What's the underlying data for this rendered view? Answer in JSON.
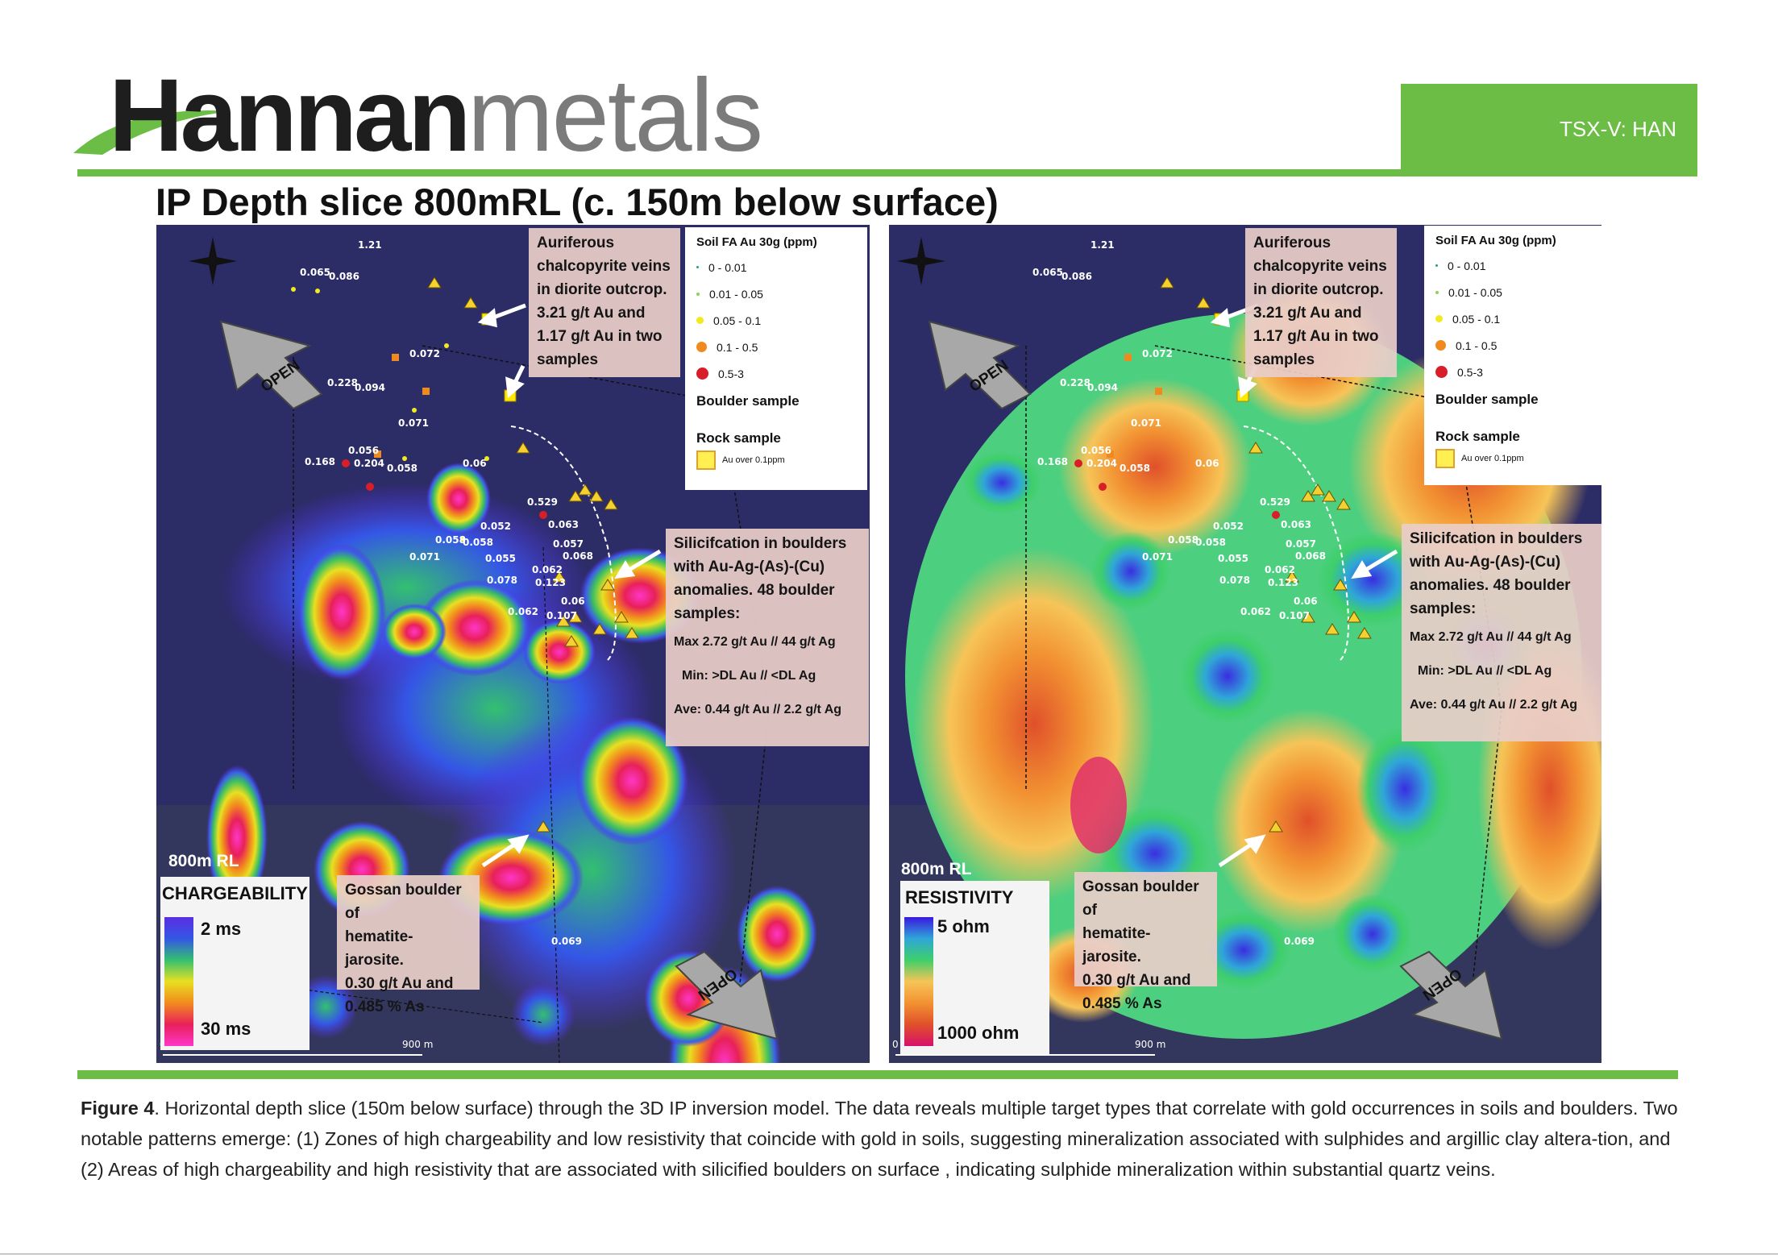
{
  "header": {
    "logo_dark": "Hannan",
    "logo_light": "metals",
    "ticker": "TSX-V: HAN",
    "title": "IP Depth slice 800mRL  (c. 150m below surface)"
  },
  "soil_legend": {
    "title": "Soil FA Au 30g (ppm)",
    "classes": [
      {
        "label": "0 - 0.01",
        "color": "#2a9a8a"
      },
      {
        "label": "0.01 - 0.05",
        "color": "#8fd05a"
      },
      {
        "label": "0.05 - 0.1",
        "color": "#f1ea1e"
      },
      {
        "label": "0.1 - 0.5",
        "color": "#f08a1e"
      },
      {
        "label": "0.5-3",
        "color": "#d81e28"
      }
    ],
    "boulder": "Boulder sample",
    "rock": "Rock sample",
    "rock_item": "Au over 0.1ppm"
  },
  "notes": {
    "auriferous": [
      "Auriferous",
      "chalcopyrite veins",
      "in diorite outcrop.",
      "3.21 g/t Au  and",
      "1.17 g/t Au in two",
      "samples"
    ],
    "silicification": [
      "Silicifcation in boulders",
      "with Au-Ag-(As)-(Cu)",
      "anomalies. 48 boulder",
      "samples:"
    ],
    "stats": [
      "Max 2.72 g/t Au  // 44 g/t Ag",
      "Min: >DL Au //  <DL Ag",
      "Ave:  0.44 g/t Au // 2.2 g/t Ag"
    ],
    "gossan": [
      "Gossan boulder of",
      "hematite-jarosite.",
      "0.30 g/t Au and",
      "0.485 % As"
    ]
  },
  "map_labels": {
    "open": "OPEN",
    "north": "N",
    "rl": "800m RL",
    "scale_start": "0",
    "scale_end": "900 m"
  },
  "values": [
    "1.21",
    "0.065",
    "0.086",
    "0.072",
    "0.228",
    "0.094",
    "0.071",
    "0.168",
    "0.056",
    "0.204",
    "0.058",
    "0.06",
    "0.529",
    "0.052",
    "0.063",
    "0.058",
    "0.058",
    "0.057",
    "0.071",
    "0.055",
    "0.068",
    "0.062",
    "0.078",
    "0.123",
    "0.06",
    "0.062",
    "0.107",
    "0.069"
  ],
  "chargeability": {
    "title": "CHARGEABILITY",
    "low": "2 ms",
    "high": "30 ms"
  },
  "resistivity": {
    "title": "RESISTIVITY",
    "low": "5 ohm",
    "high": "1000 ohm"
  },
  "colors": {
    "accent_green": "#6cbd45",
    "map_bg": "#2c2c66"
  },
  "caption": {
    "lead": "Figure 4",
    "text": ". Horizontal depth slice (150m below surface) through the 3D IP inversion model. The data reveals multiple target types that correlate with gold occurrences in soils and boulders. Two notable patterns emerge: (1) Zones of high chargeability and low resistivity that coincide with gold in soils, suggesting mineralization associated with sulphides and argillic clay altera-tion, and (2) Areas of high chargeability and high resistivity that are associated with silicified boulders on surface , indicating sulphide mineralization within substantial quartz veins."
  }
}
